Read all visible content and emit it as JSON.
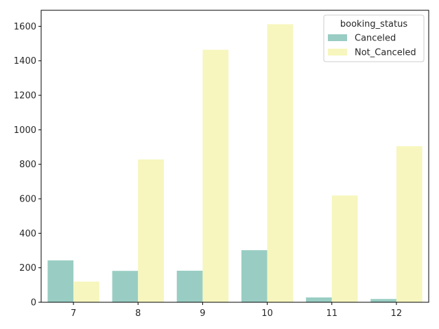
{
  "chart_data": {
    "type": "bar",
    "title": "",
    "xlabel": "",
    "ylabel": "",
    "categories": [
      "7",
      "8",
      "9",
      "10",
      "11",
      "12"
    ],
    "series": [
      {
        "name": "Canceled",
        "color": "#99cdc3",
        "values": [
          243,
          182,
          183,
          302,
          28,
          19
        ]
      },
      {
        "name": "Not_Canceled",
        "color": "#f6f6be",
        "values": [
          120,
          828,
          1464,
          1612,
          619,
          905
        ]
      }
    ],
    "ylim": [
      0,
      1693
    ],
    "yticks": [
      0,
      200,
      400,
      600,
      800,
      1000,
      1200,
      1400,
      1600
    ],
    "grid": false,
    "legend": {
      "title": "booking_status",
      "placement": "top-right"
    }
  }
}
